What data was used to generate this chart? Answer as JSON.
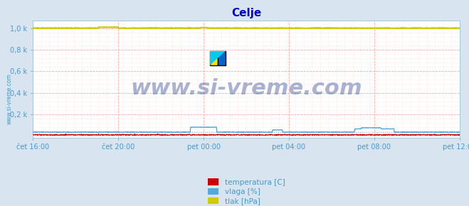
{
  "title": "Celje",
  "title_color": "#0000cc",
  "title_fontsize": 11,
  "background_color": "#d8e4f0",
  "plot_bg_color": "#ffffff",
  "grid_color_major": "#ffaaaa",
  "grid_color_minor": "#ffd0d0",
  "tick_color": "#4499cc",
  "ylabel_ticks": [
    "0,2 k",
    "0,4 k",
    "0,6 k",
    "0,8 k",
    "1,0 k"
  ],
  "ylabel_vals": [
    0.2,
    0.4,
    0.6,
    0.8,
    1.0
  ],
  "ylim": [
    -0.02,
    1.07
  ],
  "xlim": [
    0,
    1300
  ],
  "x_ticks": [
    0,
    260,
    520,
    780,
    1040,
    1300
  ],
  "x_labels": [
    "čet 16:00",
    "čet 20:00",
    "pet 00:00",
    "pet 04:00",
    "pet 08:00",
    "pet 12:00"
  ],
  "watermark": "www.si-vreme.com",
  "watermark_color": "#0a2880",
  "watermark_fontsize": 22,
  "watermark_alpha": 0.35,
  "side_label": "www.si-vreme.com",
  "side_label_color": "#4499cc",
  "legend_items": [
    {
      "label": "temperatura [C]",
      "color": "#cc0000"
    },
    {
      "label": "vlaga [%]",
      "color": "#55aadd"
    },
    {
      "label": "tlak [hPa]",
      "color": "#cccc00"
    }
  ],
  "n_points": 1300,
  "temp_base": 0.01,
  "vlaga_base": 0.035,
  "tlak_base": 1.0
}
